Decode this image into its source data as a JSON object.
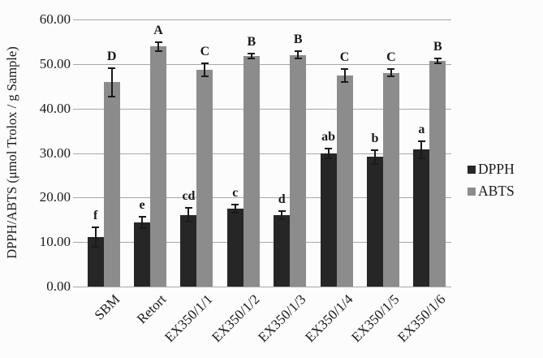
{
  "figure": {
    "background": "#fcfcfc",
    "gridline_color": "#a8a8a8",
    "error_bar_color": "#1a1a1a",
    "text_color": "#1a1a1a"
  },
  "legend": {
    "position": "right",
    "items": [
      {
        "label": "DPPH",
        "color": "#262626"
      },
      {
        "label": "ABTS",
        "color": "#8c8c8c"
      }
    ]
  },
  "chart_data": {
    "type": "bar",
    "title": "",
    "xlabel": "",
    "ylabel": "DPPH/ABTS (μmol Trolox / g Sample)",
    "ylim": [
      0,
      60
    ],
    "ytick_step": 10,
    "ytick_labels": [
      "0.00",
      "10.00",
      "20.00",
      "30.00",
      "40.00",
      "50.00",
      "60.00"
    ],
    "grid": true,
    "legend_position": "right",
    "categories": [
      "SBM",
      "Retort",
      "EX350/1/1",
      "EX350/1/2",
      "EX350/1/3",
      "EX350/1/4",
      "EX350/1/5",
      "EX350/1/6"
    ],
    "series": [
      {
        "name": "DPPH",
        "color": "#262626",
        "values": [
          11.2,
          14.4,
          16.1,
          17.5,
          16.0,
          29.9,
          29.1,
          30.8
        ],
        "errors": [
          2.2,
          1.2,
          1.5,
          0.9,
          0.9,
          1.1,
          1.5,
          1.9
        ],
        "sig_letters": [
          "f",
          "e",
          "cd",
          "c",
          "d",
          "ab",
          "b",
          "a"
        ]
      },
      {
        "name": "ABTS",
        "color": "#8c8c8c",
        "values": [
          45.9,
          53.9,
          48.7,
          51.8,
          52.0,
          47.4,
          48.0,
          50.7
        ],
        "errors": [
          3.2,
          1.0,
          1.5,
          0.6,
          0.8,
          1.5,
          0.8,
          0.5
        ],
        "sig_letters": [
          "D",
          "A",
          "C",
          "B",
          "B",
          "C",
          "C",
          "B"
        ]
      }
    ]
  }
}
